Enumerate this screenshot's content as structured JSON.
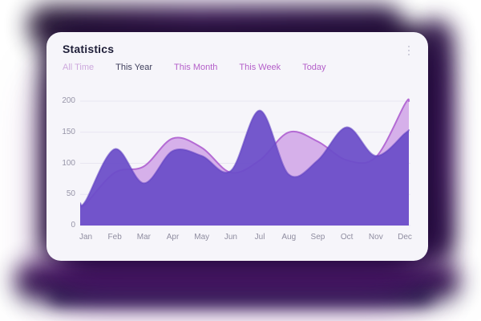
{
  "card": {
    "title": "Statistics",
    "tabs": [
      {
        "label": "All Time",
        "color": "#cda9dd"
      },
      {
        "label": "This Year",
        "color": "#3f3f5c"
      },
      {
        "label": "This Month",
        "color": "#b45fc9"
      },
      {
        "label": "This Week",
        "color": "#b45fc9"
      },
      {
        "label": "Today",
        "color": "#b45fc9"
      }
    ],
    "menu_icon": "kebab-menu"
  },
  "chart_data": {
    "type": "area",
    "title": "Statistics",
    "categories": [
      "Jan",
      "Feb",
      "Mar",
      "Apr",
      "May",
      "Jun",
      "Jul",
      "Aug",
      "Sep",
      "Oct",
      "Nov",
      "Dec"
    ],
    "series": [
      {
        "name": "secondary-light-purple",
        "values": [
          35,
          85,
          95,
          140,
          125,
          85,
          105,
          150,
          135,
          105,
          110,
          195
        ],
        "fill": "#d6b0ea",
        "fill_opacity": 1,
        "stroke": "#b46bd4",
        "stroke_opacity": 1
      },
      {
        "name": "primary-dark-purple",
        "values": [
          40,
          123,
          68,
          120,
          112,
          88,
          185,
          82,
          105,
          158,
          112,
          148
        ],
        "fill": "#6b4ec9",
        "fill_opacity": 0.94,
        "stroke": "#5e40c1",
        "stroke_opacity": 0.55
      }
    ],
    "xlabel": "",
    "ylabel": "",
    "ylim": [
      0,
      200
    ],
    "yticks": [
      0,
      50,
      100,
      150,
      200
    ],
    "grid": true,
    "gridline_color": "#e8e6f1",
    "legend": "none"
  },
  "colors": {
    "card_background": "#f6f5fa",
    "page_background": "#ffffff",
    "title_text": "#20203a",
    "tick_text": "#9795a8",
    "shadow_purple": "#351150"
  }
}
